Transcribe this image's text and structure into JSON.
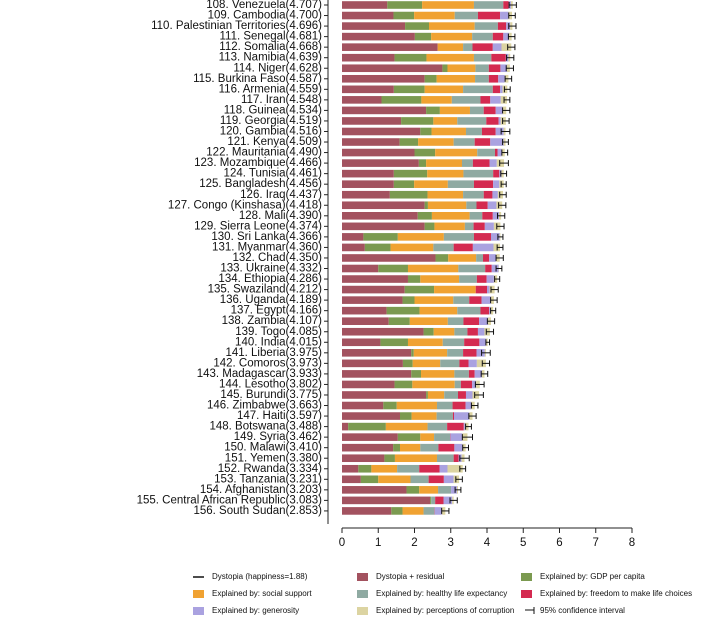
{
  "chart_data": {
    "type": "stacked-barh",
    "categories": [
      "108. Venezuela(4.707)",
      "109. Cambodia(4.700)",
      "110. Palestinian Territories(4.696)",
      "111. Senegal(4.681)",
      "112. Somalia(4.668)",
      "113. Namibia(4.639)",
      "114. Niger(4.628)",
      "115. Burkina Faso(4.587)",
      "116. Armenia(4.559)",
      "117. Iran(4.548)",
      "118. Guinea(4.534)",
      "119. Georgia(4.519)",
      "120. Gambia(4.516)",
      "121. Kenya(4.509)",
      "122. Mauritania(4.490)",
      "123. Mozambique(4.466)",
      "124. Tunisia(4.461)",
      "125. Bangladesh(4.456)",
      "126. Iraq(4.437)",
      "127. Congo (Kinshasa)(4.418)",
      "128. Mali(4.390)",
      "129. Sierra Leone(4.374)",
      "130. Sri Lanka(4.366)",
      "131. Myanmar(4.360)",
      "132. Chad(4.350)",
      "133. Ukraine(4.332)",
      "134. Ethiopia(4.286)",
      "135. Swaziland(4.212)",
      "136. Uganda(4.189)",
      "137. Egypt(4.166)",
      "138. Zambia(4.107)",
      "139. Togo(4.085)",
      "140. India(4.015)",
      "141. Liberia(3.975)",
      "142. Comoros(3.973)",
      "143. Madagascar(3.933)",
      "144. Lesotho(3.802)",
      "145. Burundi(3.775)",
      "146. Zimbabwe(3.663)",
      "147. Haiti(3.597)",
      "148. Botswana(3.488)",
      "149. Syria(3.462)",
      "150. Malawi(3.410)",
      "151. Yemen(3.380)",
      "152. Rwanda(3.334)",
      "153. Tanzania(3.231)",
      "154. Afghanistan(3.203)",
      "155. Central African Republic(3.083)",
      "156. South Sudan(2.853)"
    ],
    "series": [
      {
        "name": "Dystopia + residual",
        "color": "#a3525f",
        "values": [
          1.25,
          1.42,
          1.74,
          2.01,
          2.64,
          1.45,
          2.77,
          2.28,
          1.43,
          1.09,
          2.32,
          1.63,
          2.16,
          1.59,
          2.0,
          2.12,
          1.43,
          1.43,
          1.32,
          2.28,
          2.09,
          2.28,
          0.59,
          0.63,
          2.58,
          1.0,
          1.82,
          1.73,
          1.67,
          1.23,
          1.29,
          2.25,
          1.06,
          1.91,
          1.68,
          1.91,
          1.45,
          2.32,
          1.14,
          1.6,
          0.17,
          1.54,
          1.41,
          1.17,
          0.45,
          0.52,
          1.78,
          2.43,
          1.36
        ]
      },
      {
        "name": "Explained by: GDP per capita",
        "color": "#7b9a50",
        "values": [
          0.96,
          0.57,
          0.66,
          0.45,
          0.0,
          0.88,
          0.14,
          0.33,
          0.85,
          1.1,
          0.38,
          0.89,
          0.31,
          0.51,
          0.57,
          0.2,
          0.92,
          0.56,
          1.04,
          0.09,
          0.39,
          0.27,
          0.95,
          0.71,
          0.35,
          0.82,
          0.34,
          0.81,
          0.33,
          0.91,
          0.58,
          0.28,
          0.76,
          0.07,
          0.27,
          0.27,
          0.49,
          0.05,
          0.37,
          0.32,
          1.04,
          0.62,
          0.19,
          0.29,
          0.36,
          0.48,
          0.35,
          0.03,
          0.31
        ]
      },
      {
        "name": "Explained by: social support",
        "color": "#f0a232",
        "values": [
          1.43,
          1.12,
          1.26,
          1.13,
          0.7,
          1.31,
          0.77,
          1.06,
          1.06,
          0.84,
          0.83,
          0.66,
          0.95,
          0.98,
          1.16,
          0.99,
          1.0,
          0.93,
          0.98,
          1.06,
          1.04,
          0.84,
          1.27,
          1.18,
          0.77,
          1.39,
          1.07,
          1.15,
          1.07,
          1.04,
          1.05,
          0.57,
          0.96,
          0.92,
          0.76,
          0.92,
          1.17,
          0.45,
          1.11,
          0.69,
          1.15,
          0.38,
          0.56,
          1.16,
          0.71,
          0.89,
          0.52,
          0.0,
          0.58
        ]
      },
      {
        "name": "Explained by: healthy life expectancy",
        "color": "#8faaa2",
        "values": [
          0.81,
          0.64,
          0.64,
          0.57,
          0.26,
          0.48,
          0.37,
          0.38,
          0.82,
          0.79,
          0.38,
          0.8,
          0.44,
          0.58,
          0.49,
          0.3,
          0.82,
          0.72,
          0.57,
          0.28,
          0.35,
          0.24,
          0.83,
          0.56,
          0.19,
          0.74,
          0.49,
          0.0,
          0.44,
          0.64,
          0.43,
          0.36,
          0.59,
          0.44,
          0.53,
          0.4,
          0.17,
          0.38,
          0.43,
          0.45,
          0.54,
          0.44,
          0.5,
          0.46,
          0.61,
          0.5,
          0.36,
          0.11,
          0.3
        ]
      },
      {
        "name": "Explained by: freedom to make life choices",
        "color": "#d42a50",
        "values": [
          0.15,
          0.61,
          0.23,
          0.29,
          0.56,
          0.4,
          0.32,
          0.26,
          0.2,
          0.27,
          0.33,
          0.34,
          0.38,
          0.43,
          0.07,
          0.46,
          0.17,
          0.53,
          0.24,
          0.31,
          0.29,
          0.31,
          0.47,
          0.53,
          0.17,
          0.18,
          0.27,
          0.31,
          0.34,
          0.24,
          0.43,
          0.29,
          0.42,
          0.37,
          0.25,
          0.16,
          0.31,
          0.22,
          0.36,
          0.03,
          0.46,
          0.01,
          0.44,
          0.14,
          0.56,
          0.42,
          0.0,
          0.23,
          0.01
        ]
      },
      {
        "name": "Explained by: generosity",
        "color": "#aaa2e0",
        "values": [
          0.06,
          0.23,
          0.11,
          0.16,
          0.24,
          0.07,
          0.18,
          0.18,
          0.07,
          0.29,
          0.19,
          0.06,
          0.22,
          0.37,
          0.11,
          0.2,
          0.06,
          0.17,
          0.15,
          0.24,
          0.17,
          0.25,
          0.24,
          0.57,
          0.19,
          0.19,
          0.2,
          0.07,
          0.26,
          0.04,
          0.25,
          0.18,
          0.18,
          0.23,
          0.23,
          0.2,
          0.11,
          0.18,
          0.15,
          0.42,
          0.03,
          0.33,
          0.22,
          0.08,
          0.22,
          0.27,
          0.16,
          0.24,
          0.2
        ]
      },
      {
        "name": "Explained by: perceptions of corruption",
        "color": "#dcd4a2",
        "values": [
          0.05,
          0.1,
          0.06,
          0.07,
          0.27,
          0.05,
          0.08,
          0.1,
          0.13,
          0.17,
          0.1,
          0.14,
          0.05,
          0.05,
          0.09,
          0.2,
          0.06,
          0.12,
          0.14,
          0.16,
          0.06,
          0.18,
          0.02,
          0.18,
          0.1,
          0.01,
          0.09,
          0.14,
          0.08,
          0.07,
          0.08,
          0.15,
          0.05,
          0.03,
          0.25,
          0.07,
          0.1,
          0.18,
          0.1,
          0.09,
          0.1,
          0.14,
          0.09,
          0.08,
          0.42,
          0.15,
          0.03,
          0.04,
          0.09
        ]
      }
    ],
    "errors": [
      0.1,
      0.09,
      0.1,
      0.09,
      0.1,
      0.1,
      0.1,
      0.09,
      0.08,
      0.08,
      0.1,
      0.09,
      0.12,
      0.08,
      0.08,
      0.12,
      0.08,
      0.07,
      0.09,
      0.1,
      0.1,
      0.1,
      0.07,
      0.08,
      0.1,
      0.08,
      0.07,
      0.1,
      0.09,
      0.07,
      0.1,
      0.1,
      0.05,
      0.12,
      0.1,
      0.09,
      0.12,
      0.12,
      0.09,
      0.1,
      0.08,
      0.14,
      0.08,
      0.13,
      0.08,
      0.09,
      0.08,
      0.1,
      0.1
    ],
    "xlim": [
      0,
      8
    ],
    "xticks": [
      0,
      1,
      2,
      3,
      4,
      5,
      6,
      7,
      8
    ],
    "legend_extra": {
      "dystopia": "Dystopia (happiness=1.88)",
      "ci": "95% confidence interval"
    }
  }
}
